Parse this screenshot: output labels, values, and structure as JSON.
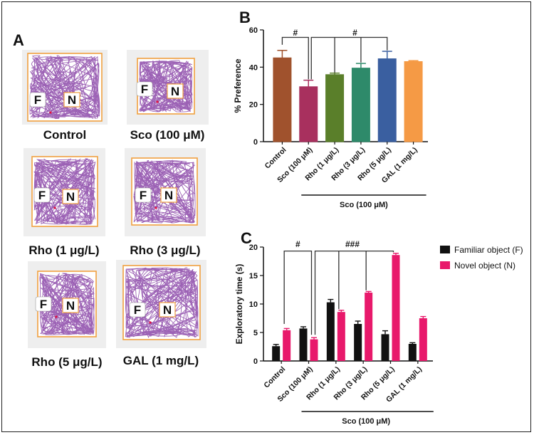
{
  "panels": {
    "a": "A",
    "b": "B",
    "c": "C"
  },
  "object_labels": {
    "familiar": "F",
    "novel": "N"
  },
  "colors": {
    "track_line": "#8b47a8",
    "arena_border": "#f0a040",
    "novel_bar": "#e8196b",
    "familiar_bar": "#111111"
  },
  "tracks": [
    {
      "label": "Control"
    },
    {
      "label": "Sco (100 μM)"
    },
    {
      "label": "Rho (1 μg/L)"
    },
    {
      "label": "Rho (3 μg/L)"
    },
    {
      "label": "Rho (5 μg/L)"
    },
    {
      "label": "GAL (1 mg/L)"
    }
  ],
  "chart_data": [
    {
      "type": "bar",
      "panel": "B",
      "categories": [
        "Control",
        "Sco (100 μM)",
        "Rho (1 μg/L)",
        "Rho (3 μg/L)",
        "Rho (5 μg/L)",
        "GAL (1 mg/L)"
      ],
      "values": [
        45,
        29.5,
        36,
        39.5,
        44.5,
        43
      ],
      "errors": [
        4,
        3.5,
        0.8,
        2.5,
        4,
        0.5
      ],
      "colors": [
        "#a0522d",
        "#a8305e",
        "#5a7f2a",
        "#2e8a6a",
        "#3a5fa0",
        "#f59a45"
      ],
      "ylabel": "% Preference",
      "ylim": [
        0,
        60
      ],
      "yticks": [
        0,
        20,
        40,
        60
      ],
      "group_label": "Sco (100 μM)",
      "significance": [
        "#",
        "#"
      ]
    },
    {
      "type": "bar",
      "panel": "C",
      "categories": [
        "Control",
        "Sco (100 μM)",
        "Rho (1 μg/L)",
        "Rho (3 μg/L)",
        "Rho (5 μg/L)",
        "GAL (1 mg/L)"
      ],
      "series": [
        {
          "name": "Familiar object (F)",
          "values": [
            2.6,
            5.7,
            10.3,
            6.5,
            4.7,
            3.0
          ],
          "errors": [
            0.3,
            0.3,
            0.5,
            0.5,
            0.6,
            0.2
          ],
          "color": "#111111"
        },
        {
          "name": "Novel object (N)",
          "values": [
            5.4,
            3.8,
            8.6,
            12.0,
            18.6,
            7.5
          ],
          "errors": [
            0.3,
            0.3,
            0.3,
            0.2,
            0.3,
            0.3
          ],
          "color": "#e8196b"
        }
      ],
      "ylabel": "Exploratory time (s)",
      "ylim": [
        0,
        20
      ],
      "yticks": [
        0,
        5,
        10,
        15,
        20
      ],
      "group_label": "Sco (100 μM)",
      "significance": [
        "#",
        "###"
      ]
    }
  ]
}
